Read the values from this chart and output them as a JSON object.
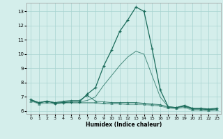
{
  "xlabel": "Humidex (Indice chaleur)",
  "xlim": [
    -0.5,
    23.5
  ],
  "ylim": [
    5.8,
    13.6
  ],
  "yticks": [
    6,
    7,
    8,
    9,
    10,
    11,
    12,
    13
  ],
  "xticks": [
    0,
    1,
    2,
    3,
    4,
    5,
    6,
    7,
    8,
    9,
    10,
    11,
    12,
    13,
    14,
    15,
    16,
    17,
    18,
    19,
    20,
    21,
    22,
    23
  ],
  "bg_color": "#d4eeeb",
  "grid_color": "#a8d4d0",
  "line_color": "#1a6b5a",
  "series_main": [
    6.8,
    6.6,
    6.7,
    6.55,
    6.6,
    6.65,
    6.65,
    7.2,
    7.65,
    9.15,
    10.3,
    11.6,
    12.4,
    13.3,
    13.0,
    10.4,
    7.5,
    6.3,
    6.25,
    6.4,
    6.2,
    6.2,
    6.15,
    6.2
  ],
  "series_tri": [
    6.75,
    6.55,
    6.7,
    6.6,
    6.7,
    6.75,
    6.75,
    7.1,
    6.7,
    6.65,
    6.6,
    6.6,
    6.6,
    6.6,
    6.55,
    6.5,
    6.45,
    6.3,
    6.25,
    6.35,
    6.15,
    6.15,
    6.1,
    6.15
  ],
  "series_flat1": [
    6.75,
    6.55,
    6.6,
    6.55,
    6.6,
    6.6,
    6.6,
    6.6,
    6.6,
    6.55,
    6.55,
    6.55,
    6.5,
    6.5,
    6.5,
    6.45,
    6.4,
    6.25,
    6.2,
    6.3,
    6.1,
    6.1,
    6.05,
    6.1
  ],
  "series_flat2": [
    6.7,
    6.5,
    6.55,
    6.5,
    6.55,
    6.55,
    6.55,
    6.55,
    6.55,
    6.5,
    6.5,
    6.5,
    6.45,
    6.45,
    6.45,
    6.4,
    6.35,
    6.2,
    6.15,
    6.25,
    6.05,
    6.05,
    6.0,
    6.05
  ],
  "series_rising": [
    6.8,
    6.6,
    6.7,
    6.6,
    6.65,
    6.65,
    6.65,
    6.75,
    7.0,
    7.8,
    8.5,
    9.2,
    9.8,
    10.2,
    10.0,
    8.5,
    7.0,
    6.3,
    6.25,
    6.35,
    6.15,
    6.15,
    6.1,
    6.15
  ]
}
